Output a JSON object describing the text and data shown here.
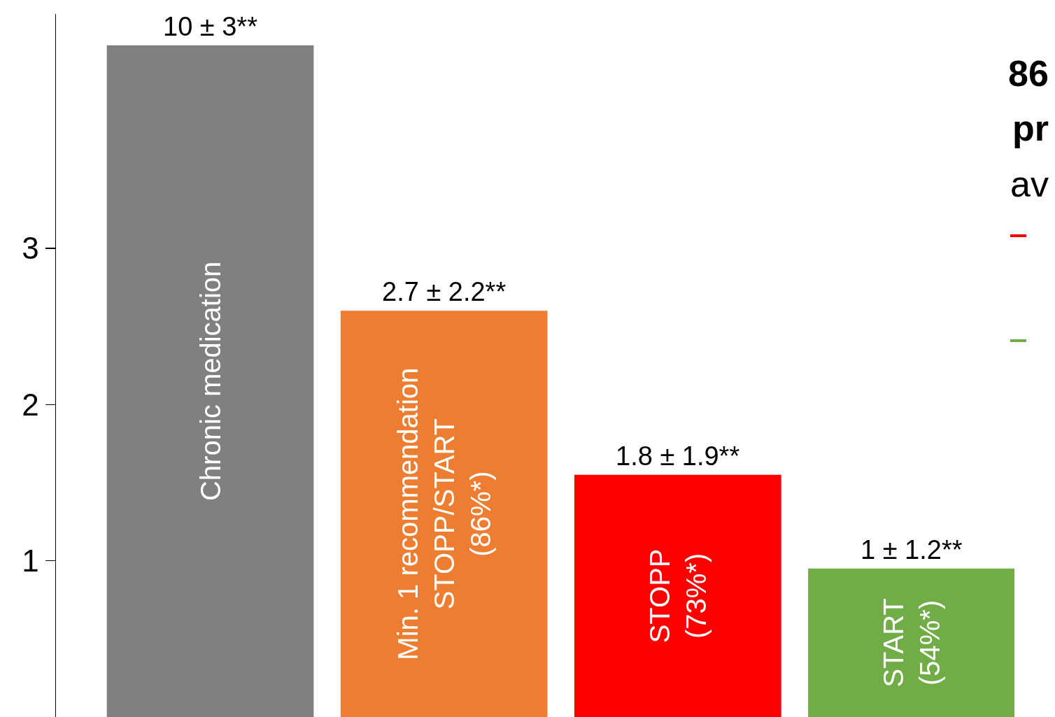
{
  "chart_data": {
    "type": "bar",
    "categories": [
      "Chronic medication",
      "Min. 1 recommendation\nSTOPP/START\n(86%*)",
      "STOPP\n(73%*)",
      "START\n(54%*)"
    ],
    "values": [
      4.3,
      2.6,
      1.55,
      0.95
    ],
    "colors": [
      "#808080",
      "#ed7d31",
      "#ff0000",
      "#70ad47"
    ],
    "ylim": [
      0,
      4.5
    ],
    "yticks": [
      1,
      2,
      3
    ],
    "grid": false,
    "legend": false,
    "tick_labels": "y",
    "annotations": [
      {
        "text": "10 ± 3**",
        "x": "Chronic medication",
        "y": 4.3
      },
      {
        "text": "2.7 ± 2.2**",
        "x": "Min. 1 recommendation\nSTOPP/START\n(86%*)",
        "y": 2.6
      },
      {
        "text": "1.8 ± 1.9**",
        "x": "STOPP\n(73%*)",
        "y": 1.55
      },
      {
        "text": "1 ± 1.2**",
        "x": "START\n(54%*)",
        "y": 0.95
      },
      "86",
      "pr",
      "av"
    ]
  }
}
